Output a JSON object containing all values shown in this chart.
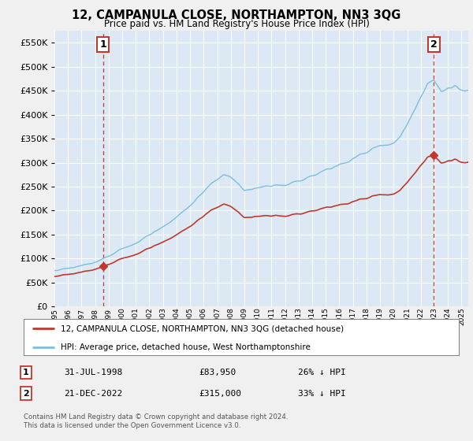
{
  "title": "12, CAMPANULA CLOSE, NORTHAMPTON, NN3 3QG",
  "subtitle": "Price paid vs. HM Land Registry's House Price Index (HPI)",
  "legend_line1": "12, CAMPANULA CLOSE, NORTHAMPTON, NN3 3QG (detached house)",
  "legend_line2": "HPI: Average price, detached house, West Northamptonshire",
  "table_rows": [
    {
      "num": "1",
      "date": "31-JUL-1998",
      "price": "£83,950",
      "hpi": "26% ↓ HPI"
    },
    {
      "num": "2",
      "date": "21-DEC-2022",
      "price": "£315,000",
      "hpi": "33% ↓ HPI"
    }
  ],
  "footnote": "Contains HM Land Registry data © Crown copyright and database right 2024.\nThis data is licensed under the Open Government Licence v3.0.",
  "transaction_1_x": 1998.58,
  "transaction_1_y": 83950,
  "transaction_2_x": 2022.97,
  "transaction_2_y": 315000,
  "hpi_color": "#7bbfde",
  "price_color": "#c0392b",
  "bg_color": "#f0f0f0",
  "plot_bg_color": "#dce9f5",
  "grid_color": "#ffffff",
  "ylim": [
    0,
    575000
  ],
  "xlim_start": 1995.0,
  "xlim_end": 2025.5,
  "yticks": [
    0,
    50000,
    100000,
    150000,
    200000,
    250000,
    300000,
    350000,
    400000,
    450000,
    500000,
    550000
  ],
  "xticks": [
    1995,
    1996,
    1997,
    1998,
    1999,
    2000,
    2001,
    2002,
    2003,
    2004,
    2005,
    2006,
    2007,
    2008,
    2009,
    2010,
    2011,
    2012,
    2013,
    2014,
    2015,
    2016,
    2017,
    2018,
    2019,
    2020,
    2021,
    2022,
    2023,
    2024,
    2025
  ]
}
